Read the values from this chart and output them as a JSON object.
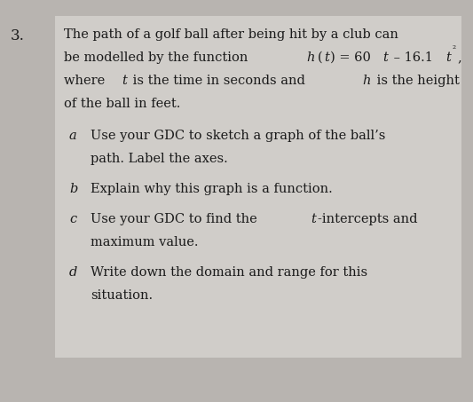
{
  "background_color": "#b8b4b0",
  "box_color": "#d0cdc9",
  "number": "3.",
  "text_color": "#1a1a1a",
  "font_size": 10.5,
  "line1": "The path of a golf ball after being hit by a club can",
  "line2_pre": "be modelled by the function ",
  "line2_formula_pieces": [
    [
      "h",
      true
    ],
    [
      "(",
      false
    ],
    [
      "t",
      true
    ],
    [
      ") = 60",
      false
    ],
    [
      "t",
      true
    ],
    [
      " – 16.1",
      false
    ],
    [
      "t",
      true
    ],
    [
      "²",
      false,
      true
    ],
    [
      ",",
      false
    ]
  ],
  "line3_pieces": [
    [
      "where ",
      false
    ],
    [
      "t",
      true
    ],
    [
      " is the time in seconds and ",
      false
    ],
    [
      "h",
      true
    ],
    [
      " is the height",
      false
    ]
  ],
  "line4": "of the ball in feet.",
  "item_a_l1": "Use your GDC to sketch a graph of the ball’s",
  "item_a_l2": "path. Label the axes.",
  "item_b_l1": "Explain why this graph is a function.",
  "item_c_pieces": [
    [
      "Use your GDC to find the ",
      false
    ],
    [
      "t",
      true
    ],
    [
      "-intercepts and",
      false
    ]
  ],
  "item_c_l2": "maximum value.",
  "item_d_l1": "Write down the domain and range for this",
  "item_d_l2": "situation."
}
